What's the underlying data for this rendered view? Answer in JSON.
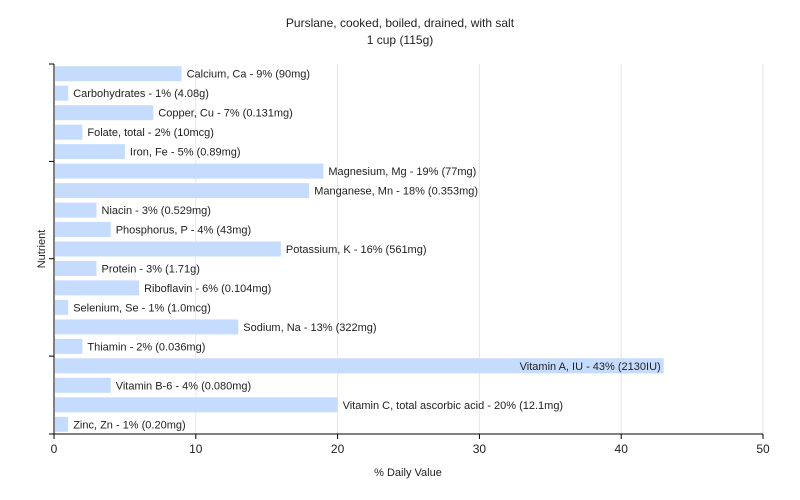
{
  "chart_data": {
    "type": "bar",
    "orientation": "horizontal",
    "title": "Purslane, cooked, boiled, drained, with salt",
    "subtitle": "1 cup (115g)",
    "xlabel": "% Daily Value",
    "ylabel": "Nutrient",
    "xlim": [
      0,
      50
    ],
    "xticks": [
      0,
      10,
      20,
      30,
      40,
      50
    ],
    "grid": "vertical",
    "legend": "none",
    "colors": {
      "bar": "#c6dcff",
      "axis": "#000000",
      "grid": "#e6e6e6",
      "text": "#222222"
    },
    "bars": [
      {
        "label": "Calcium, Ca - 9% (90mg)",
        "value": 9
      },
      {
        "label": "Carbohydrates - 1% (4.08g)",
        "value": 1
      },
      {
        "label": "Copper, Cu - 7% (0.131mg)",
        "value": 7
      },
      {
        "label": "Folate, total - 2% (10mcg)",
        "value": 2
      },
      {
        "label": "Iron, Fe - 5% (0.89mg)",
        "value": 5
      },
      {
        "label": "Magnesium, Mg - 19% (77mg)",
        "value": 19
      },
      {
        "label": "Manganese, Mn - 18% (0.353mg)",
        "value": 18
      },
      {
        "label": "Niacin - 3% (0.529mg)",
        "value": 3
      },
      {
        "label": "Phosphorus, P - 4% (43mg)",
        "value": 4
      },
      {
        "label": "Potassium, K - 16% (561mg)",
        "value": 16
      },
      {
        "label": "Protein - 3% (1.71g)",
        "value": 3
      },
      {
        "label": "Riboflavin - 6% (0.104mg)",
        "value": 6
      },
      {
        "label": "Selenium, Se - 1% (1.0mcg)",
        "value": 1
      },
      {
        "label": "Sodium, Na - 13% (322mg)",
        "value": 13
      },
      {
        "label": "Thiamin - 2% (0.036mg)",
        "value": 2
      },
      {
        "label": "Vitamin A, IU - 43% (2130IU)",
        "value": 43
      },
      {
        "label": "Vitamin B-6 - 4% (0.080mg)",
        "value": 4
      },
      {
        "label": "Vitamin C, total ascorbic acid - 20% (12.1mg)",
        "value": 20
      },
      {
        "label": "Zinc, Zn - 1% (0.20mg)",
        "value": 1
      }
    ]
  }
}
